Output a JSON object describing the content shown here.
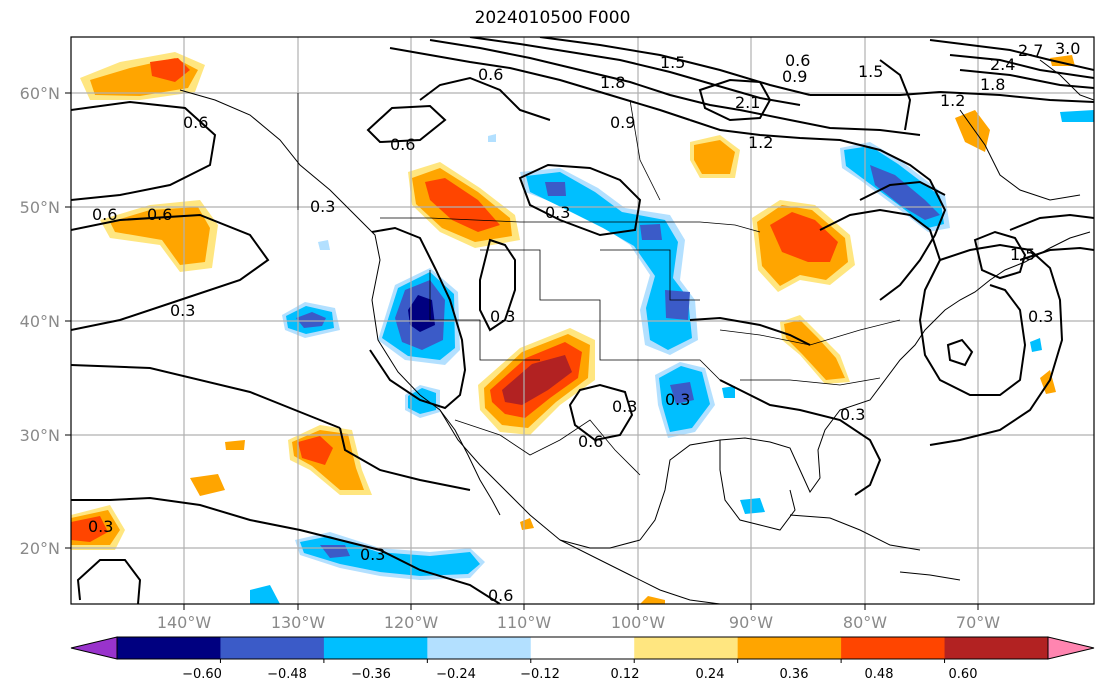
{
  "title": "2024010500 F000",
  "lon_ticks": [
    "140°W",
    "130°W",
    "120°W",
    "110°W",
    "100°W",
    "90°W",
    "80°W",
    "70°W"
  ],
  "lat_ticks": [
    "60°N",
    "50°N",
    "40°N",
    "30°N",
    "20°N"
  ],
  "colorbar": {
    "colors": [
      "#9933cc",
      "#000080",
      "#3b5bc8",
      "#00bfff",
      "#b3e0ff",
      "#ffffff",
      "#ffe680",
      "#ffa500",
      "#ff4500",
      "#b22222",
      "#ff85b0"
    ],
    "tick_labels": [
      "−0.60",
      "−0.48",
      "−0.36",
      "−0.24",
      "−0.12",
      "0.12",
      "0.24",
      "0.36",
      "0.48",
      "0.60"
    ]
  },
  "contour_labels": [
    "0.6",
    "0.6",
    "0.6",
    "0.6",
    "0.6",
    "0.3",
    "0.3",
    "0.3",
    "0.3",
    "0.3",
    "0.3",
    "0.3",
    "0.3",
    "0.6",
    "0.6",
    "0.9",
    "1.2",
    "1.5",
    "1.8",
    "2.1",
    "1.5",
    "0.9",
    "0.6",
    "1.2",
    "1.8",
    "2.4",
    "2.7",
    "3.0",
    "0.3",
    "1.5",
    "0.3"
  ]
}
